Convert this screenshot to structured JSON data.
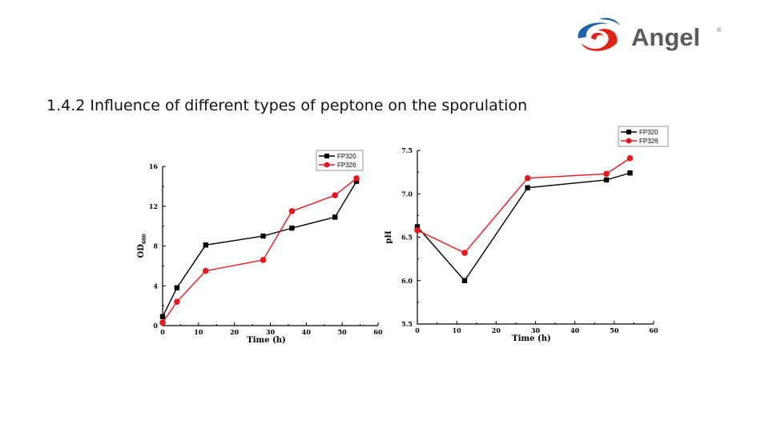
{
  "slide": {
    "title": "1.4.2 Influence of different types of peptone  on the sporulation",
    "logo_text": "Angel",
    "logo_mark": "®"
  },
  "colors": {
    "fp320": "#000000",
    "fp326": "#e8161b",
    "logo_red": "#e2231a",
    "logo_blue": "#1d64ad",
    "logo_gray": "#5a5b5d"
  },
  "chart_data": [
    {
      "type": "line",
      "xlabel": "Time (h)",
      "ylabel": "OD",
      "ylabel_sub": "600",
      "xlim": [
        0,
        60
      ],
      "ylim": [
        0,
        16
      ],
      "xticks": [
        0,
        10,
        20,
        30,
        40,
        50,
        60
      ],
      "yticks": [
        0,
        4,
        8,
        12,
        16
      ],
      "legend_position": "top-right",
      "series": [
        {
          "name": "FP320",
          "marker": "square",
          "color": "#000000",
          "x": [
            0,
            4,
            12,
            28,
            36,
            48,
            54
          ],
          "y": [
            0.9,
            3.8,
            8.1,
            9.0,
            9.8,
            10.9,
            14.5
          ]
        },
        {
          "name": "FP326",
          "marker": "circle",
          "color": "#e8161b",
          "x": [
            0,
            4,
            12,
            28,
            36,
            48,
            54
          ],
          "y": [
            0.3,
            2.4,
            5.5,
            6.6,
            11.5,
            13.1,
            14.8
          ]
        }
      ]
    },
    {
      "type": "line",
      "xlabel": "Time (h)",
      "ylabel": "pH",
      "xlim": [
        0,
        60
      ],
      "ylim": [
        5.5,
        7.5
      ],
      "xticks": [
        0,
        10,
        20,
        30,
        40,
        50,
        60
      ],
      "yticks": [
        5.5,
        6.0,
        6.5,
        7.0,
        7.5
      ],
      "legend_position": "top-right",
      "series": [
        {
          "name": "FP320",
          "marker": "square",
          "color": "#000000",
          "x": [
            0,
            12,
            28,
            48,
            54
          ],
          "y": [
            6.62,
            6.0,
            7.07,
            7.16,
            7.24
          ]
        },
        {
          "name": "FP326",
          "marker": "circle",
          "color": "#e8161b",
          "x": [
            0,
            12,
            28,
            48,
            54
          ],
          "y": [
            6.58,
            6.32,
            7.18,
            7.23,
            7.41
          ]
        }
      ]
    }
  ]
}
